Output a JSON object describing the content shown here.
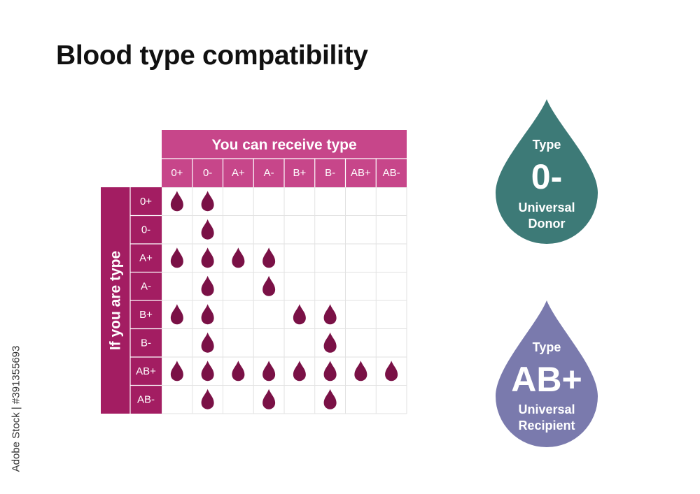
{
  "title": "Blood type compatibility",
  "matrix": {
    "column_header": "You can receive type",
    "row_header": "If you are type",
    "types": [
      "0+",
      "0-",
      "A+",
      "A-",
      "B+",
      "B-",
      "AB+",
      "AB-"
    ],
    "can_receive": [
      [
        1,
        1,
        0,
        0,
        0,
        0,
        0,
        0
      ],
      [
        0,
        1,
        0,
        0,
        0,
        0,
        0,
        0
      ],
      [
        1,
        1,
        1,
        1,
        0,
        0,
        0,
        0
      ],
      [
        0,
        1,
        0,
        1,
        0,
        0,
        0,
        0
      ],
      [
        1,
        1,
        0,
        0,
        1,
        1,
        0,
        0
      ],
      [
        0,
        1,
        0,
        0,
        0,
        1,
        0,
        0
      ],
      [
        1,
        1,
        1,
        1,
        1,
        1,
        1,
        1
      ],
      [
        0,
        1,
        0,
        1,
        0,
        1,
        0,
        0
      ]
    ],
    "colors": {
      "header": "#c7468a",
      "side": "#a31d62",
      "drop": "#7a1146",
      "grid": "#e2e2e2"
    }
  },
  "donor": {
    "type_label": "Type",
    "blood_type": "0-",
    "line1": "Universal",
    "line2": "Donor",
    "color": "#3d7a77"
  },
  "recipient": {
    "type_label": "Type",
    "blood_type": "AB+",
    "line1": "Universal",
    "line2": "Recipient",
    "color": "#7a7aad"
  },
  "watermark_id": "Adobe Stock | #391355693"
}
